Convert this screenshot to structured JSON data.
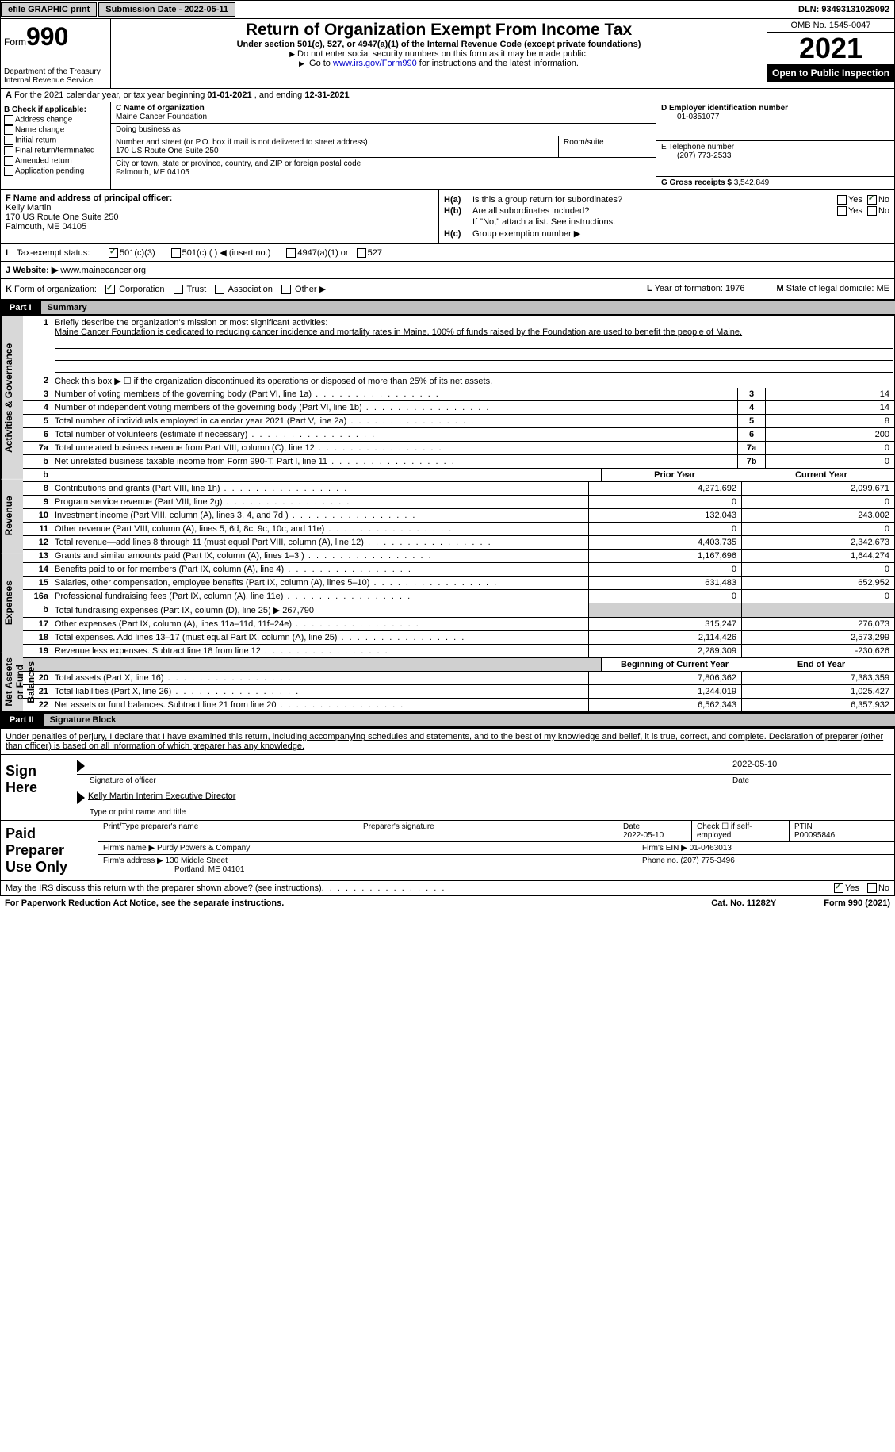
{
  "topbar": {
    "efile": "efile GRAPHIC print",
    "submission_label": "Submission Date - ",
    "submission_date": "2022-05-11",
    "dln_label": "DLN: ",
    "dln": "93493131029092"
  },
  "header": {
    "form_word": "Form",
    "form_number": "990",
    "dept": "Department of the Treasury",
    "irs": "Internal Revenue Service",
    "title": "Return of Organization Exempt From Income Tax",
    "subtitle": "Under section 501(c), 527, or 4947(a)(1) of the Internal Revenue Code (except private foundations)",
    "note1": "Do not enter social security numbers on this form as it may be made public.",
    "note2_pre": "Go to ",
    "note2_link": "www.irs.gov/Form990",
    "note2_post": " for instructions and the latest information.",
    "omb": "OMB No. 1545-0047",
    "year": "2021",
    "open": "Open to Public Inspection"
  },
  "rowA": {
    "label": "A",
    "text_pre": "For the 2021 calendar year, or tax year beginning ",
    "begin": "01-01-2021",
    "mid": " , and ending ",
    "end": "12-31-2021"
  },
  "B": {
    "label": "B Check if applicable:",
    "items": [
      "Address change",
      "Name change",
      "Initial return",
      "Final return/terminated",
      "Amended return",
      "Application pending"
    ]
  },
  "C": {
    "name_label": "C Name of organization",
    "name": "Maine Cancer Foundation",
    "dba_label": "Doing business as",
    "dba": "",
    "street_label": "Number and street (or P.O. box if mail is not delivered to street address)",
    "room_label": "Room/suite",
    "street": "170 US Route One Suite 250",
    "city_label": "City or town, state or province, country, and ZIP or foreign postal code",
    "city": "Falmouth, ME  04105"
  },
  "D": {
    "label": "D Employer identification number",
    "value": "01-0351077",
    "E_label": "E Telephone number",
    "E_value": "(207) 773-2533",
    "G_label": "G Gross receipts $ ",
    "G_value": "3,542,849"
  },
  "F": {
    "label": "F  Name and address of principal officer:",
    "name": "Kelly Martin",
    "street": "170 US Route One Suite 250",
    "city": "Falmouth, ME  04105"
  },
  "H": {
    "a_label": "H(a)",
    "a_text": "Is this a group return for subordinates?",
    "b_label": "H(b)",
    "b_text": "Are all subordinates included?",
    "b_note": "If \"No,\" attach a list. See instructions.",
    "c_label": "H(c)",
    "c_text": "Group exemption number ▶",
    "yes": "Yes",
    "no": "No"
  },
  "I": {
    "label": "I",
    "text": "Tax-exempt status:",
    "opt1": "501(c)(3)",
    "opt2": "501(c) (  ) ◀ (insert no.)",
    "opt3": "4947(a)(1) or",
    "opt4": "527"
  },
  "J": {
    "label": "J",
    "text": "Website: ▶",
    "value": "www.mainecancer.org"
  },
  "K": {
    "label": "K",
    "text": "Form of organization:",
    "opts": [
      "Corporation",
      "Trust",
      "Association",
      "Other ▶"
    ],
    "L_label": "L",
    "L_text": "Year of formation: ",
    "L_value": "1976",
    "M_label": "M",
    "M_text": "State of legal domicile: ",
    "M_value": "ME"
  },
  "part1": {
    "part_label": "Part I",
    "part_title": "Summary",
    "tab1": "Activities & Governance",
    "tab2": "Revenue",
    "tab3": "Expenses",
    "tab4": "Net Assets or Fund Balances",
    "line1_label": "1",
    "line1_text": "Briefly describe the organization's mission or most significant activities:",
    "mission": "Maine Cancer Foundation is dedicated to reducing cancer incidence and mortality rates in Maine. 100% of funds raised by the Foundation are used to benefit the people of Maine.",
    "line2_label": "2",
    "line2_text": "Check this box ▶ ☐  if the organization discontinued its operations or disposed of more than 25% of its net assets.",
    "lines": [
      {
        "n": "3",
        "t": "Number of voting members of the governing body (Part VI, line 1a)",
        "box": "3",
        "v": "14"
      },
      {
        "n": "4",
        "t": "Number of independent voting members of the governing body (Part VI, line 1b)",
        "box": "4",
        "v": "14"
      },
      {
        "n": "5",
        "t": "Total number of individuals employed in calendar year 2021 (Part V, line 2a)",
        "box": "5",
        "v": "8"
      },
      {
        "n": "6",
        "t": "Total number of volunteers (estimate if necessary)",
        "box": "6",
        "v": "200"
      },
      {
        "n": "7a",
        "t": "Total unrelated business revenue from Part VIII, column (C), line 12",
        "box": "7a",
        "v": "0"
      },
      {
        "n": "b",
        "t": "Net unrelated business taxable income from Form 990-T, Part I, line 11",
        "box": "7b",
        "v": "0"
      }
    ],
    "col_prior": "Prior Year",
    "col_current": "Current Year",
    "rev": [
      {
        "n": "8",
        "t": "Contributions and grants (Part VIII, line 1h)",
        "p": "4,271,692",
        "c": "2,099,671"
      },
      {
        "n": "9",
        "t": "Program service revenue (Part VIII, line 2g)",
        "p": "0",
        "c": "0"
      },
      {
        "n": "10",
        "t": "Investment income (Part VIII, column (A), lines 3, 4, and 7d )",
        "p": "132,043",
        "c": "243,002"
      },
      {
        "n": "11",
        "t": "Other revenue (Part VIII, column (A), lines 5, 6d, 8c, 9c, 10c, and 11e)",
        "p": "0",
        "c": "0"
      },
      {
        "n": "12",
        "t": "Total revenue—add lines 8 through 11 (must equal Part VIII, column (A), line 12)",
        "p": "4,403,735",
        "c": "2,342,673"
      }
    ],
    "exp": [
      {
        "n": "13",
        "t": "Grants and similar amounts paid (Part IX, column (A), lines 1–3 )",
        "p": "1,167,696",
        "c": "1,644,274"
      },
      {
        "n": "14",
        "t": "Benefits paid to or for members (Part IX, column (A), line 4)",
        "p": "0",
        "c": "0"
      },
      {
        "n": "15",
        "t": "Salaries, other compensation, employee benefits (Part IX, column (A), lines 5–10)",
        "p": "631,483",
        "c": "652,952"
      },
      {
        "n": "16a",
        "t": "Professional fundraising fees (Part IX, column (A), line 11e)",
        "p": "0",
        "c": "0"
      }
    ],
    "line16b_n": "b",
    "line16b_t": "Total fundraising expenses (Part IX, column (D), line 25) ▶",
    "line16b_v": "267,790",
    "exp2": [
      {
        "n": "17",
        "t": "Other expenses (Part IX, column (A), lines 11a–11d, 11f–24e)",
        "p": "315,247",
        "c": "276,073"
      },
      {
        "n": "18",
        "t": "Total expenses. Add lines 13–17 (must equal Part IX, column (A), line 25)",
        "p": "2,114,426",
        "c": "2,573,299"
      },
      {
        "n": "19",
        "t": "Revenue less expenses. Subtract line 18 from line 12",
        "p": "2,289,309",
        "c": "-230,626"
      }
    ],
    "col_begin": "Beginning of Current Year",
    "col_end": "End of Year",
    "net": [
      {
        "n": "20",
        "t": "Total assets (Part X, line 16)",
        "p": "7,806,362",
        "c": "7,383,359"
      },
      {
        "n": "21",
        "t": "Total liabilities (Part X, line 26)",
        "p": "1,244,019",
        "c": "1,025,427"
      },
      {
        "n": "22",
        "t": "Net assets or fund balances. Subtract line 21 from line 20",
        "p": "6,562,343",
        "c": "6,357,932"
      }
    ]
  },
  "part2": {
    "part_label": "Part II",
    "part_title": "Signature Block",
    "perjury": "Under penalties of perjury, I declare that I have examined this return, including accompanying schedules and statements, and to the best of my knowledge and belief, it is true, correct, and complete. Declaration of preparer (other than officer) is based on all information of which preparer has any knowledge.",
    "sign_here": "Sign Here",
    "sig_officer": "Signature of officer",
    "sig_date": "2022-05-10",
    "date_label": "Date",
    "officer_name": "Kelly Martin  Interim Executive Director",
    "type_name": "Type or print name and title",
    "paid": "Paid Preparer Use Only",
    "prep_name_label": "Print/Type preparer's name",
    "prep_sig_label": "Preparer's signature",
    "prep_date_label": "Date",
    "prep_date": "2022-05-10",
    "check_if": "Check ☐ if self-employed",
    "ptin_label": "PTIN",
    "ptin": "P00095846",
    "firm_name_label": "Firm's name   ▶",
    "firm_name": "Purdy Powers & Company",
    "firm_ein_label": "Firm's EIN ▶",
    "firm_ein": "01-0463013",
    "firm_addr_label": "Firm's address ▶",
    "firm_addr1": "130 Middle Street",
    "firm_addr2": "Portland, ME  04101",
    "phone_label": "Phone no. ",
    "phone": "(207) 775-3496",
    "discuss": "May the IRS discuss this return with the preparer shown above? (see instructions)",
    "yes": "Yes",
    "no": "No"
  },
  "footer": {
    "pra": "For Paperwork Reduction Act Notice, see the separate instructions.",
    "cat": "Cat. No. 11282Y",
    "form": "Form 990 (2021)"
  }
}
